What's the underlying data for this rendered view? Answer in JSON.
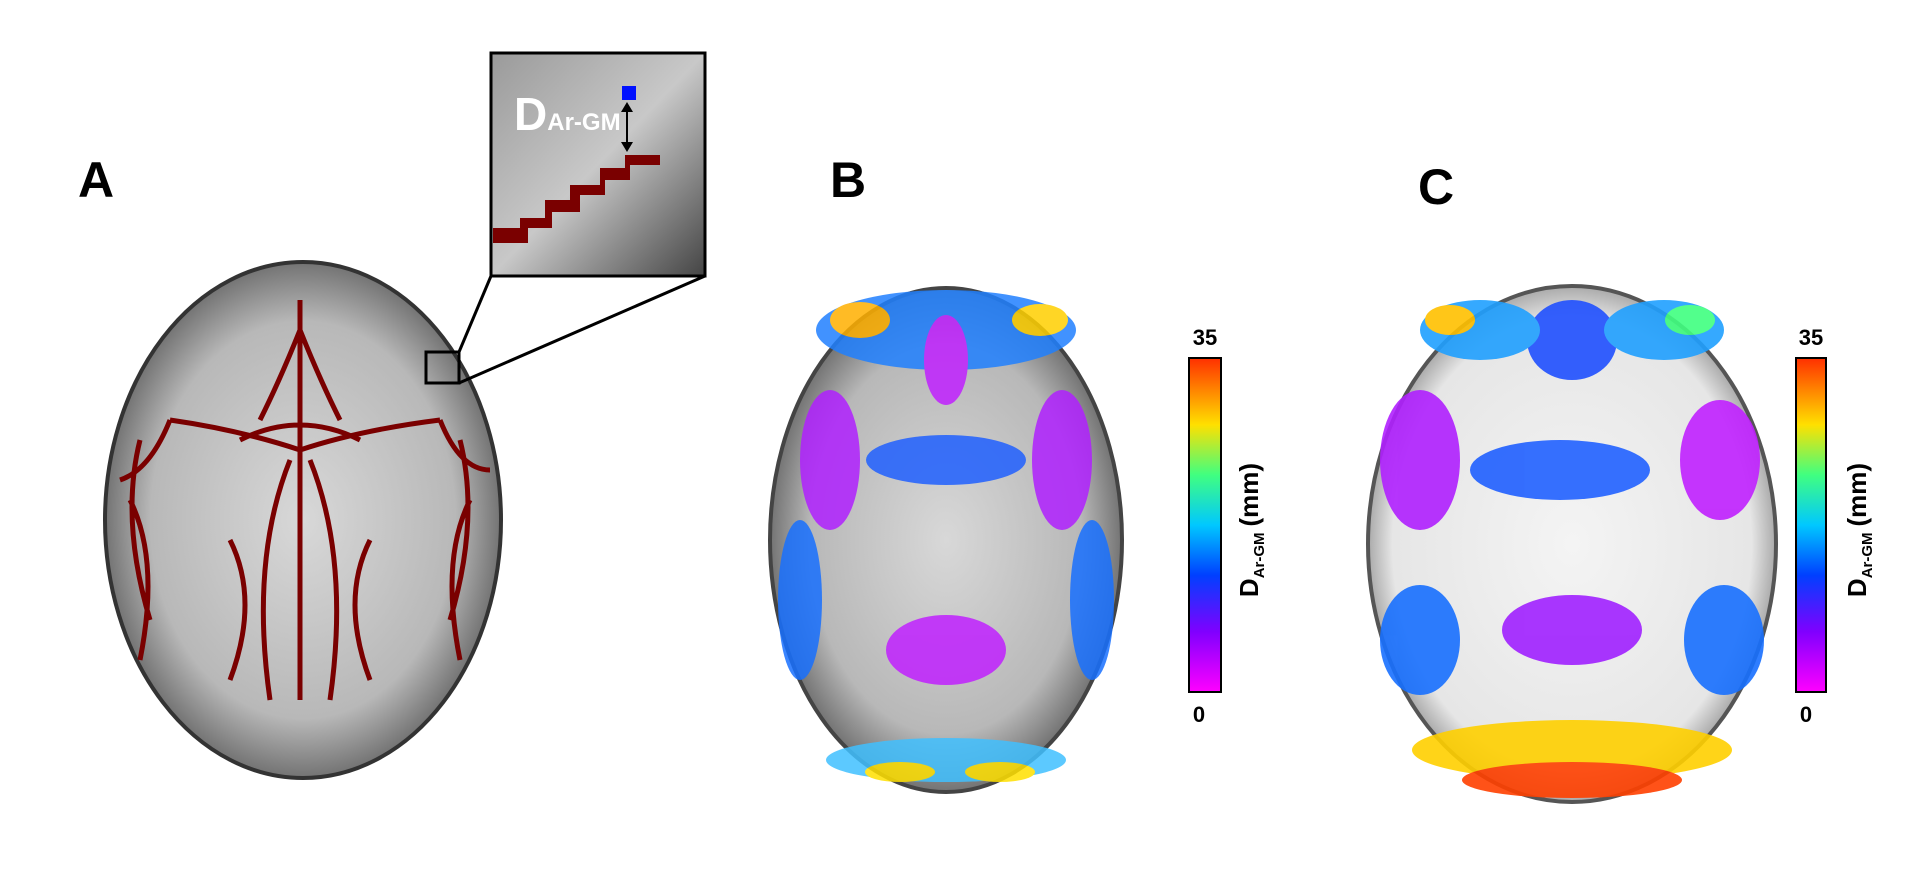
{
  "panels": [
    {
      "label": "A",
      "inset": {
        "symbol": "D",
        "subscript": "Ar-GM"
      }
    },
    {
      "label": "B",
      "colorbar": {
        "range": [
          0,
          35
        ],
        "symbol": "D",
        "subscript": "Ar-GM",
        "unit": "(mm)"
      }
    },
    {
      "label": "C",
      "colorbar": {
        "range": [
          0,
          35
        ],
        "symbol": "D",
        "subscript": "Ar-GM",
        "unit": "(mm)"
      }
    }
  ]
}
